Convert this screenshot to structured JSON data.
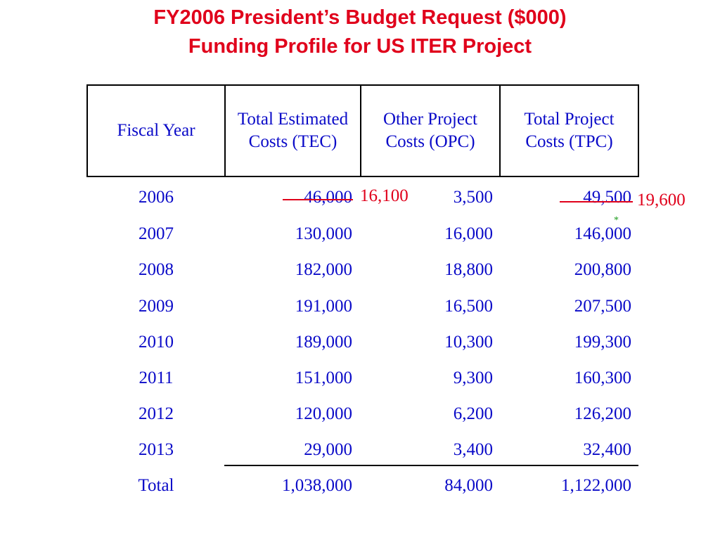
{
  "title": {
    "line1": "FY2006 President’s Budget Request ($000)",
    "line2": "Funding Profile for US ITER Project"
  },
  "colors": {
    "title": "#e0001b",
    "table_text": "#0a0ac8",
    "correction": "#e0001b",
    "asterisk": "#1a9a1a"
  },
  "table": {
    "headers": {
      "fiscal_year": "Fiscal Year",
      "tec": "Total Estimated Costs (TEC)",
      "opc": "Other Project Costs (OPC)",
      "tpc": "Total Project Costs (TPC)"
    },
    "rows": [
      {
        "year": "2006",
        "tec": "46,000",
        "opc": "3,500",
        "tpc": "49,500"
      },
      {
        "year": "2007",
        "tec": "130,000",
        "opc": "16,000",
        "tpc": "146,000"
      },
      {
        "year": "2008",
        "tec": "182,000",
        "opc": "18,800",
        "tpc": "200,800"
      },
      {
        "year": "2009",
        "tec": "191,000",
        "opc": "16,500",
        "tpc": "207,500"
      },
      {
        "year": "2010",
        "tec": "189,000",
        "opc": "10,300",
        "tpc": "199,300"
      },
      {
        "year": "2011",
        "tec": "151,000",
        "opc": "9,300",
        "tpc": "160,300"
      },
      {
        "year": "2012",
        "tec": "120,000",
        "opc": "6,200",
        "tpc": "126,200"
      },
      {
        "year": "2013",
        "tec": "29,000",
        "opc": "3,400",
        "tpc": "32,400"
      }
    ],
    "total": {
      "label": "Total",
      "tec": "1,038,000",
      "opc": "84,000",
      "tpc": "1,122,000"
    },
    "corrections": {
      "tec_2006": "16,100",
      "tpc_2006": "19,600",
      "asterisk": "*"
    }
  }
}
